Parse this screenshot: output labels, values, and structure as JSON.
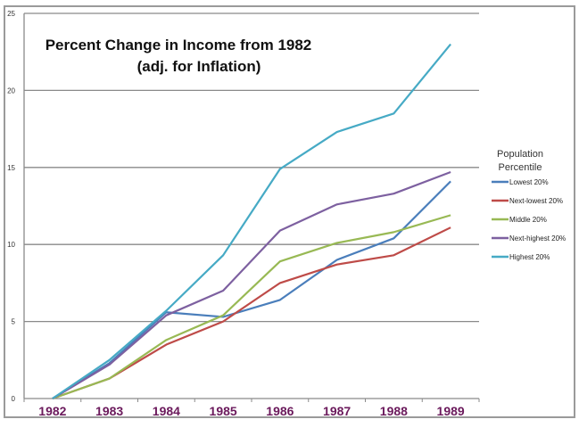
{
  "chart_data": {
    "type": "line",
    "title": "Percent Change in Income from 1982",
    "subtitle": "(adj. for Inflation)",
    "xlabel": "",
    "ylabel": "",
    "categories": [
      "1982",
      "1983",
      "1984",
      "1985",
      "1986",
      "1987",
      "1988",
      "1989"
    ],
    "ylim": [
      0,
      25
    ],
    "yticks": [
      "0",
      "5",
      "10",
      "15",
      "20",
      "25"
    ],
    "grid": true,
    "legend": {
      "title_line1": "Population",
      "title_line2": "Percentile",
      "placement": "right"
    },
    "series": [
      {
        "name": "Lowest 20%",
        "color": "#4a7ebb",
        "values": [
          0,
          2.3,
          5.6,
          5.3,
          6.4,
          9.0,
          10.4,
          14.1
        ]
      },
      {
        "name": "Next-lowest 20%",
        "color": "#be4b48",
        "values": [
          0,
          1.3,
          3.5,
          5.0,
          7.5,
          8.7,
          9.3,
          11.1
        ]
      },
      {
        "name": "Middle 20%",
        "color": "#98b954",
        "values": [
          0,
          1.3,
          3.8,
          5.4,
          8.9,
          10.1,
          10.8,
          11.9
        ]
      },
      {
        "name": "Next-highest 20%",
        "color": "#7d60a0",
        "values": [
          0,
          2.2,
          5.4,
          7.0,
          10.9,
          12.6,
          13.3,
          14.7
        ]
      },
      {
        "name": "Highest 20%",
        "color": "#46aac5",
        "values": [
          0,
          2.5,
          5.7,
          9.3,
          14.9,
          17.3,
          18.5,
          23.0
        ]
      }
    ]
  }
}
